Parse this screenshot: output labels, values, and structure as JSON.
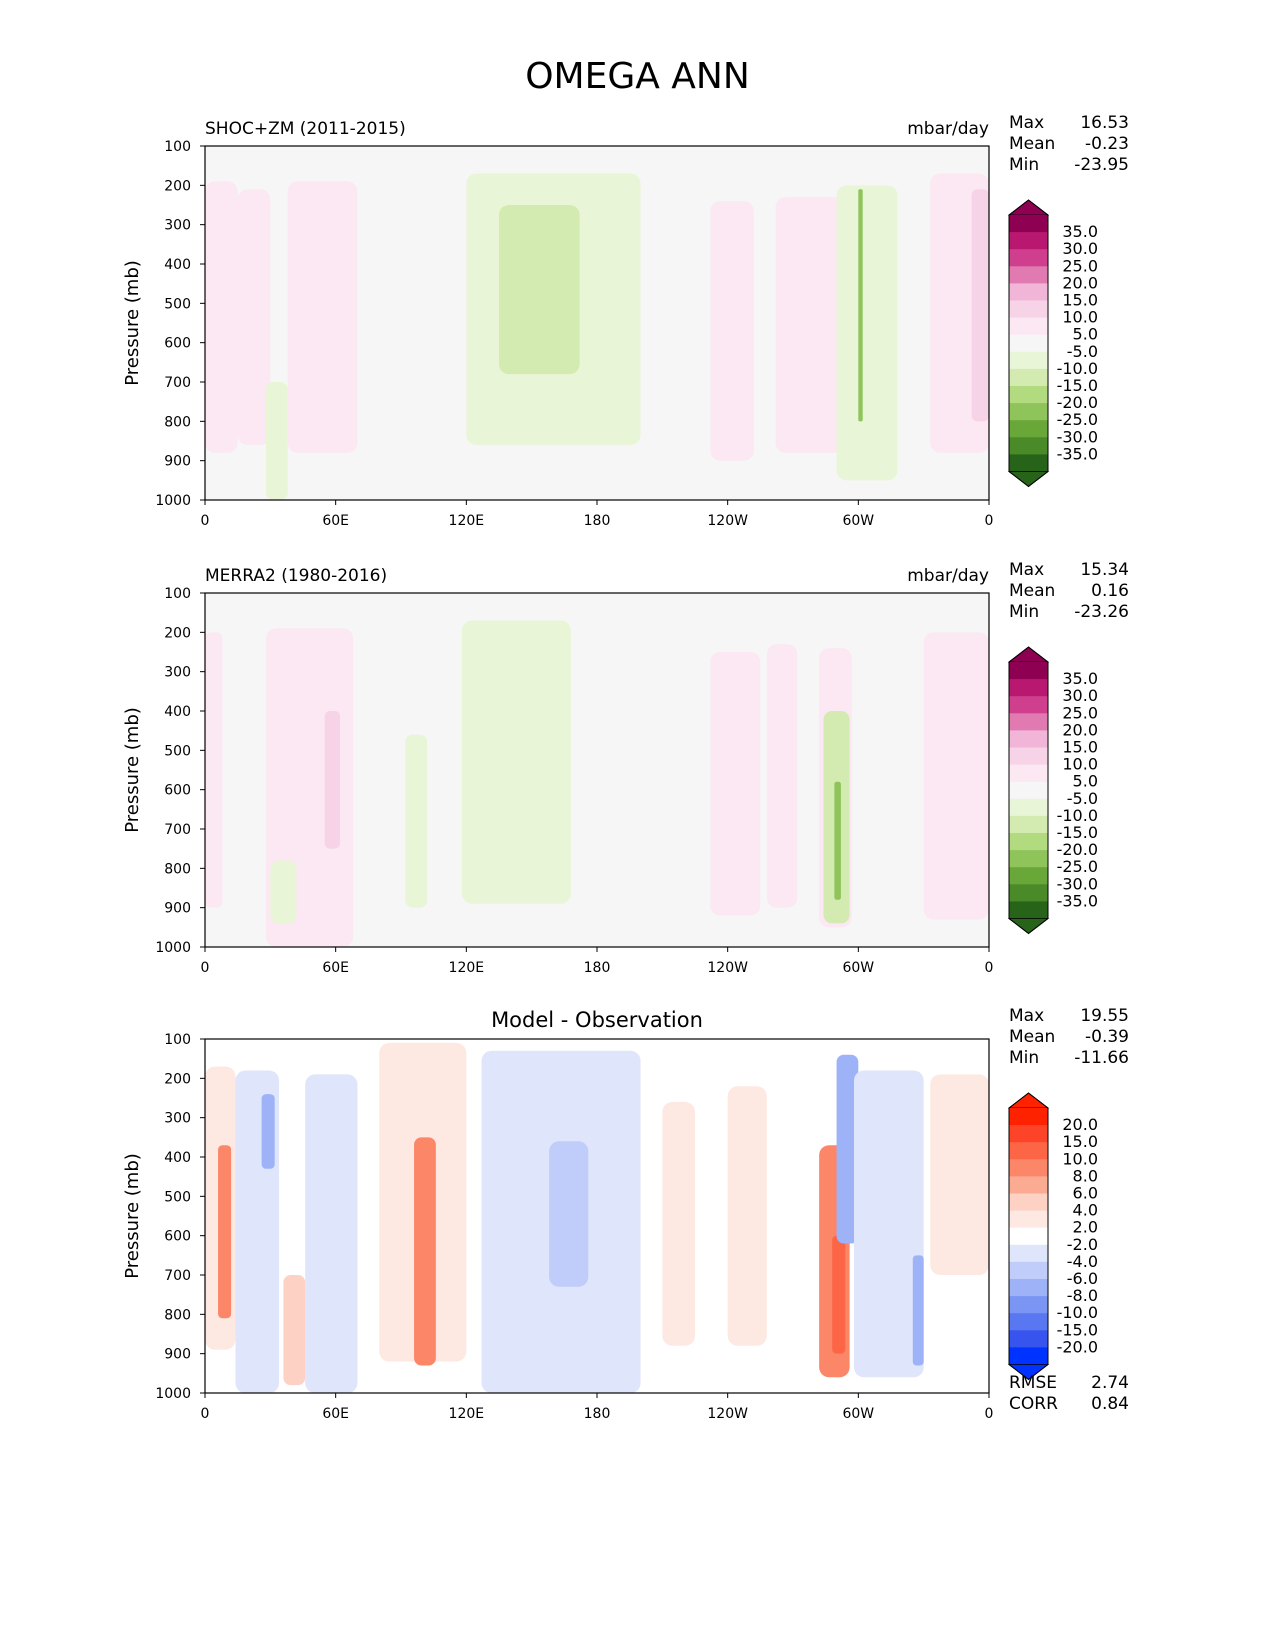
{
  "title": "OMEGA ANN",
  "chart_data": [
    {
      "type": "heatmap",
      "title": "SHOC+ZM (2011-2015)",
      "units": "mbar/day",
      "ylabel": "Pressure (mb)",
      "xlabel": "",
      "xlim": [
        0,
        360
      ],
      "ylim": [
        1000,
        100
      ],
      "x_ticks": [
        "0",
        "60E",
        "120E",
        "180",
        "120W",
        "60W",
        "0"
      ],
      "y_ticks": [
        "100",
        "200",
        "300",
        "400",
        "500",
        "600",
        "700",
        "800",
        "900",
        "1000"
      ],
      "stats": [
        {
          "label": "Max",
          "value": "16.53"
        },
        {
          "label": "Mean",
          "value": "-0.23"
        },
        {
          "label": "Min",
          "value": "-23.95"
        }
      ],
      "colorbar": {
        "labels": [
          "35.0",
          "30.0",
          "25.0",
          "20.0",
          "15.0",
          "10.0",
          "5.0",
          "-5.0",
          "-10.0",
          "-15.0",
          "-20.0",
          "-25.0",
          "-30.0",
          "-35.0"
        ],
        "colors": [
          "#8e0152",
          "#b8186f",
          "#cf3f8d",
          "#e07ab1",
          "#f1b5d8",
          "#f7d3e7",
          "#fbe8f2",
          "#f6f6f6",
          "#e9f5d7",
          "#d3ebb0",
          "#b2db7f",
          "#8ec45a",
          "#6aa739",
          "#4b8a28",
          "#276419"
        ],
        "over_color": "#8e0152",
        "under_color": "#276419"
      },
      "features": [
        {
          "lon0": 0,
          "lon1": 15,
          "p_top": 190,
          "p_bot": 880,
          "value": 9
        },
        {
          "lon0": 15,
          "lon1": 30,
          "p_top": 210,
          "p_bot": 860,
          "value": 6
        },
        {
          "lon0": 38,
          "lon1": 70,
          "p_top": 190,
          "p_bot": 880,
          "value": 6
        },
        {
          "lon0": 28,
          "lon1": 38,
          "p_top": 700,
          "p_bot": 1000,
          "value": -6
        },
        {
          "lon0": 120,
          "lon1": 200,
          "p_top": 170,
          "p_bot": 860,
          "value": -6
        },
        {
          "lon0": 135,
          "lon1": 172,
          "p_top": 250,
          "p_bot": 680,
          "value": -12
        },
        {
          "lon0": 232,
          "lon1": 252,
          "p_top": 240,
          "p_bot": 900,
          "value": 6
        },
        {
          "lon0": 262,
          "lon1": 293,
          "p_top": 230,
          "p_bot": 880,
          "value": 6
        },
        {
          "lon0": 290,
          "lon1": 318,
          "p_top": 200,
          "p_bot": 950,
          "value": -6
        },
        {
          "lon0": 300,
          "lon1": 302,
          "p_top": 210,
          "p_bot": 800,
          "value": -25
        },
        {
          "lon0": 333,
          "lon1": 360,
          "p_top": 170,
          "p_bot": 880,
          "value": 6
        },
        {
          "lon0": 352,
          "lon1": 360,
          "p_top": 210,
          "p_bot": 800,
          "value": 11
        }
      ]
    },
    {
      "type": "heatmap",
      "title": "MERRA2 (1980-2016)",
      "units": "mbar/day",
      "ylabel": "Pressure (mb)",
      "xlabel": "",
      "xlim": [
        0,
        360
      ],
      "ylim": [
        1000,
        100
      ],
      "x_ticks": [
        "0",
        "60E",
        "120E",
        "180",
        "120W",
        "60W",
        "0"
      ],
      "y_ticks": [
        "100",
        "200",
        "300",
        "400",
        "500",
        "600",
        "700",
        "800",
        "900",
        "1000"
      ],
      "stats": [
        {
          "label": "Max",
          "value": "15.34"
        },
        {
          "label": "Mean",
          "value": "0.16"
        },
        {
          "label": "Min",
          "value": "-23.26"
        }
      ],
      "colorbar": {
        "labels": [
          "35.0",
          "30.0",
          "25.0",
          "20.0",
          "15.0",
          "10.0",
          "5.0",
          "-5.0",
          "-10.0",
          "-15.0",
          "-20.0",
          "-25.0",
          "-30.0",
          "-35.0"
        ],
        "colors": [
          "#8e0152",
          "#b8186f",
          "#cf3f8d",
          "#e07ab1",
          "#f1b5d8",
          "#f7d3e7",
          "#fbe8f2",
          "#f6f6f6",
          "#e9f5d7",
          "#d3ebb0",
          "#b2db7f",
          "#8ec45a",
          "#6aa739",
          "#4b8a28",
          "#276419"
        ],
        "over_color": "#8e0152",
        "under_color": "#276419"
      },
      "features": [
        {
          "lon0": 0,
          "lon1": 8,
          "p_top": 200,
          "p_bot": 900,
          "value": 6
        },
        {
          "lon0": 28,
          "lon1": 68,
          "p_top": 190,
          "p_bot": 1000,
          "value": 6
        },
        {
          "lon0": 55,
          "lon1": 62,
          "p_top": 400,
          "p_bot": 750,
          "value": 11
        },
        {
          "lon0": 30,
          "lon1": 42,
          "p_top": 780,
          "p_bot": 940,
          "value": -8
        },
        {
          "lon0": 92,
          "lon1": 102,
          "p_top": 460,
          "p_bot": 900,
          "value": -7
        },
        {
          "lon0": 118,
          "lon1": 168,
          "p_top": 170,
          "p_bot": 890,
          "value": -6
        },
        {
          "lon0": 232,
          "lon1": 255,
          "p_top": 250,
          "p_bot": 920,
          "value": 6
        },
        {
          "lon0": 258,
          "lon1": 272,
          "p_top": 230,
          "p_bot": 900,
          "value": 6
        },
        {
          "lon0": 282,
          "lon1": 297,
          "p_top": 240,
          "p_bot": 950,
          "value": 6
        },
        {
          "lon0": 284,
          "lon1": 296,
          "p_top": 400,
          "p_bot": 940,
          "value": -12
        },
        {
          "lon0": 289,
          "lon1": 292,
          "p_top": 580,
          "p_bot": 880,
          "value": -22
        },
        {
          "lon0": 330,
          "lon1": 360,
          "p_top": 200,
          "p_bot": 930,
          "value": 6
        }
      ]
    },
    {
      "type": "heatmap",
      "title": "Model - Observation",
      "units": "",
      "ylabel": "Pressure (mb)",
      "xlabel": "",
      "xlim": [
        0,
        360
      ],
      "ylim": [
        1000,
        100
      ],
      "x_ticks": [
        "0",
        "60E",
        "120E",
        "180",
        "120W",
        "60W",
        "0"
      ],
      "y_ticks": [
        "100",
        "200",
        "300",
        "400",
        "500",
        "600",
        "700",
        "800",
        "900",
        "1000"
      ],
      "stats": [
        {
          "label": "Max",
          "value": "19.55"
        },
        {
          "label": "Mean",
          "value": "-0.39"
        },
        {
          "label": "Min",
          "value": "-11.66"
        }
      ],
      "metrics": [
        {
          "label": "RMSE",
          "value": "2.74"
        },
        {
          "label": "CORR",
          "value": "0.84"
        }
      ],
      "colorbar": {
        "labels": [
          "20.0",
          "15.0",
          "10.0",
          "8.0",
          "6.0",
          "4.0",
          "2.0",
          "-2.0",
          "-4.0",
          "-6.0",
          "-8.0",
          "-10.0",
          "-15.0",
          "-20.0"
        ],
        "colors": [
          "#ff2200",
          "#fd4429",
          "#fc6646",
          "#fb8668",
          "#fcab93",
          "#fdd1c4",
          "#fee9e2",
          "#ffffff",
          "#dfe5fb",
          "#c0ccfa",
          "#9eb2f7",
          "#7b95f4",
          "#5977f1",
          "#3754ef",
          "#0033ff"
        ],
        "over_color": "#ff2200",
        "under_color": "#0033ff"
      },
      "features": [
        {
          "lon0": 0,
          "lon1": 14,
          "p_top": 170,
          "p_bot": 890,
          "value": 3
        },
        {
          "lon0": 6,
          "lon1": 12,
          "p_top": 370,
          "p_bot": 810,
          "value": 9
        },
        {
          "lon0": 14,
          "lon1": 34,
          "p_top": 180,
          "p_bot": 1000,
          "value": -3
        },
        {
          "lon0": 26,
          "lon1": 32,
          "p_top": 240,
          "p_bot": 430,
          "value": -7
        },
        {
          "lon0": 36,
          "lon1": 46,
          "p_top": 700,
          "p_bot": 980,
          "value": 5
        },
        {
          "lon0": 46,
          "lon1": 70,
          "p_top": 190,
          "p_bot": 1000,
          "value": -3
        },
        {
          "lon0": 80,
          "lon1": 120,
          "p_top": 110,
          "p_bot": 920,
          "value": 3
        },
        {
          "lon0": 96,
          "lon1": 106,
          "p_top": 350,
          "p_bot": 930,
          "value": 9
        },
        {
          "lon0": 127,
          "lon1": 200,
          "p_top": 130,
          "p_bot": 1000,
          "value": -3
        },
        {
          "lon0": 158,
          "lon1": 176,
          "p_top": 360,
          "p_bot": 730,
          "value": -5
        },
        {
          "lon0": 210,
          "lon1": 225,
          "p_top": 260,
          "p_bot": 880,
          "value": 3
        },
        {
          "lon0": 240,
          "lon1": 258,
          "p_top": 220,
          "p_bot": 880,
          "value": 3
        },
        {
          "lon0": 282,
          "lon1": 296,
          "p_top": 370,
          "p_bot": 960,
          "value": 9
        },
        {
          "lon0": 288,
          "lon1": 294,
          "p_top": 600,
          "p_bot": 900,
          "value": 12
        },
        {
          "lon0": 290,
          "lon1": 300,
          "p_top": 140,
          "p_bot": 620,
          "value": -7
        },
        {
          "lon0": 298,
          "lon1": 330,
          "p_top": 180,
          "p_bot": 960,
          "value": -3
        },
        {
          "lon0": 325,
          "lon1": 330,
          "p_top": 650,
          "p_bot": 930,
          "value": -7
        },
        {
          "lon0": 333,
          "lon1": 360,
          "p_top": 190,
          "p_bot": 700,
          "value": 3
        }
      ]
    }
  ]
}
